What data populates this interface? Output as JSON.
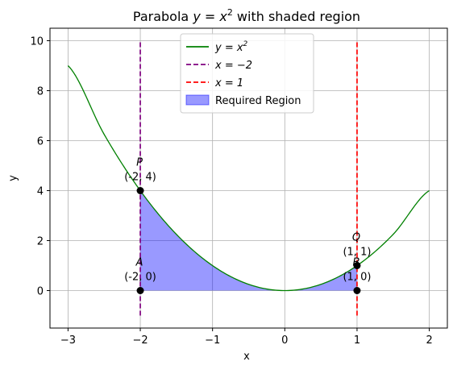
{
  "chart_data": {
    "type": "line",
    "title_prefix": "Parabola ",
    "title_math": "y = x",
    "title_exp": "2",
    "title_suffix": " with shaded region",
    "xlabel": "x",
    "ylabel": "y",
    "xlim": [
      -3.25,
      2.25
    ],
    "ylim": [
      -1.5,
      10.5
    ],
    "xticks": [
      -3,
      -2,
      -1,
      0,
      1,
      2
    ],
    "yticks": [
      0,
      2,
      4,
      6,
      8,
      10
    ],
    "xtick_labels": [
      "−3",
      "−2",
      "−1",
      "0",
      "1",
      "2"
    ],
    "ytick_labels": [
      "0",
      "2",
      "4",
      "6",
      "8",
      "10"
    ],
    "grid": true,
    "legend_position": "top-center",
    "colors": {
      "curve": "#008000",
      "line_a": "#800080",
      "line_b": "#ff0000",
      "region": "#0000ff",
      "point": "#000000",
      "grid": "#b0b0b0"
    },
    "series": [
      {
        "name": "y = x",
        "name_exp": "2",
        "kind": "curve",
        "x": [
          -3,
          -2.5,
          -2,
          -1.5,
          -1,
          -0.5,
          0,
          0.5,
          1,
          1.5,
          2
        ],
        "y": [
          9,
          6.25,
          4,
          2.25,
          1,
          0.25,
          0,
          0.25,
          1,
          2.25,
          4
        ]
      },
      {
        "name": "x = −2",
        "kind": "vline",
        "x": -2,
        "y_range": [
          -1,
          10
        ]
      },
      {
        "name": "x = 1",
        "kind": "vline",
        "x": 1,
        "y_range": [
          -1,
          10
        ]
      },
      {
        "name": "Required Region",
        "kind": "fill",
        "x_range": [
          -2,
          1
        ]
      }
    ],
    "points": [
      {
        "name": "P",
        "coord": "(-2, 4)",
        "x": -2,
        "y": 4
      },
      {
        "name": "A",
        "coord": "(-2, 0)",
        "x": -2,
        "y": 0
      },
      {
        "name": "Q",
        "coord": "(1, 1)",
        "x": 1,
        "y": 1
      },
      {
        "name": "B",
        "coord": "(1, 0)",
        "x": 1,
        "y": 0
      }
    ]
  }
}
